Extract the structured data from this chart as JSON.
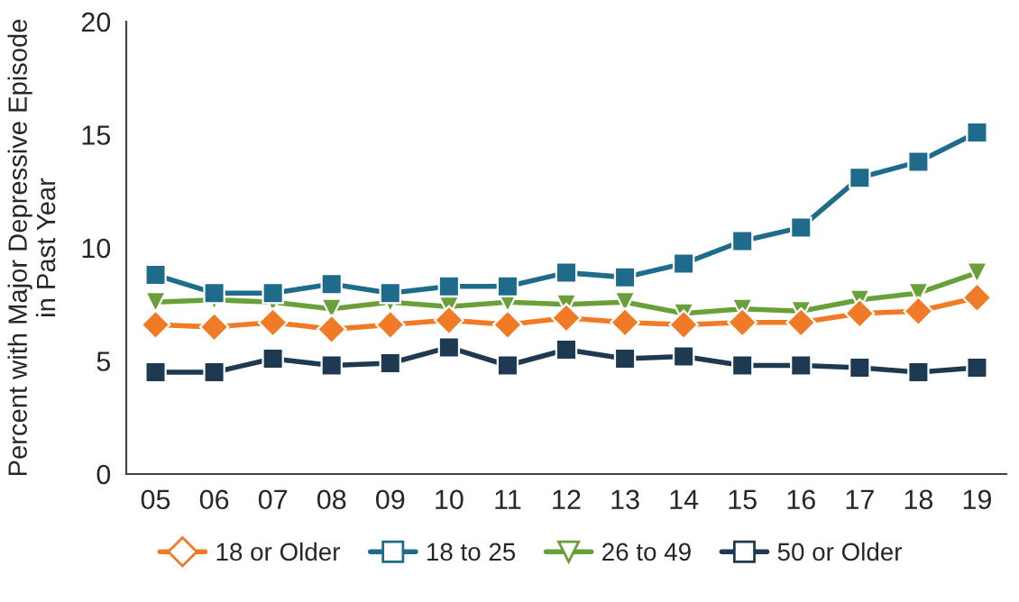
{
  "chart_data": {
    "type": "line",
    "ylabel": "Percent with Major Depressive Episode\nin Past Year",
    "categories": [
      "05",
      "06",
      "07",
      "08",
      "09",
      "10",
      "11",
      "12",
      "13",
      "14",
      "15",
      "16",
      "17",
      "18",
      "19"
    ],
    "ylim": [
      0,
      20
    ],
    "yticks": [
      0,
      5,
      10,
      15,
      20
    ],
    "grid": false,
    "legend": "bottom",
    "series": [
      {
        "name": "18 or Older",
        "color": "#f07a26",
        "marker": "diamond",
        "values": [
          6.6,
          6.5,
          6.7,
          6.4,
          6.6,
          6.8,
          6.6,
          6.9,
          6.7,
          6.6,
          6.7,
          6.7,
          7.1,
          7.2,
          7.8
        ]
      },
      {
        "name": "18 to 25",
        "color": "#1f6b8c",
        "marker": "square",
        "values": [
          8.8,
          8.0,
          8.0,
          8.4,
          8.0,
          8.3,
          8.3,
          8.9,
          8.7,
          9.3,
          10.3,
          10.9,
          13.1,
          13.8,
          15.1
        ]
      },
      {
        "name": "26 to 49",
        "color": "#6aa03a",
        "marker": "triangle",
        "values": [
          7.6,
          7.7,
          7.6,
          7.3,
          7.6,
          7.4,
          7.6,
          7.5,
          7.6,
          7.1,
          7.3,
          7.2,
          7.7,
          8.0,
          8.9
        ]
      },
      {
        "name": "50 or Older",
        "color": "#1d3a52",
        "marker": "square",
        "values": [
          4.5,
          4.5,
          5.1,
          4.8,
          4.9,
          5.6,
          4.8,
          5.5,
          5.1,
          5.2,
          4.8,
          4.8,
          4.7,
          4.5,
          4.7
        ]
      }
    ]
  }
}
